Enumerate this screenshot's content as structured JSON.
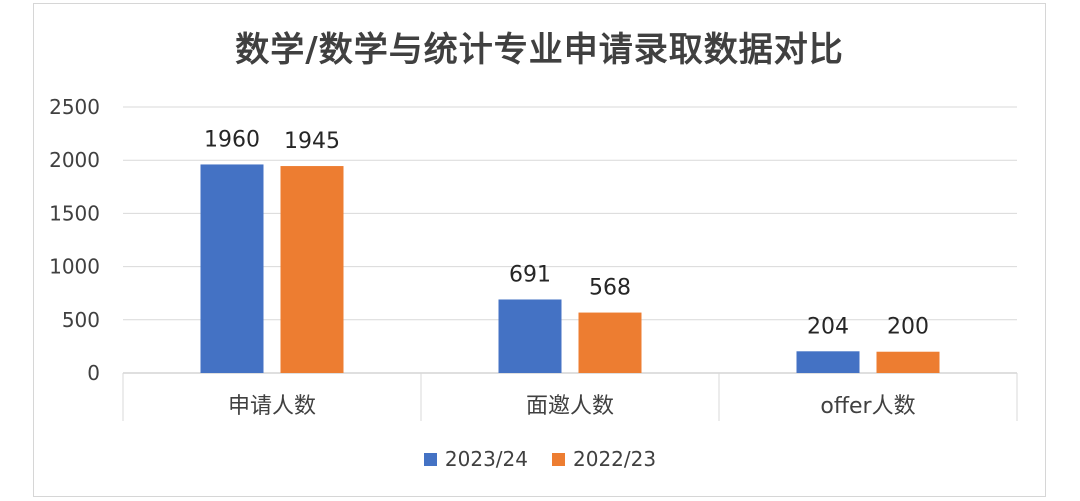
{
  "chart_data": {
    "type": "bar",
    "title": "数学/数学与统计专业申请录取数据对比",
    "categories": [
      "申请人数",
      "面邀人数",
      "offer人数"
    ],
    "series": [
      {
        "name": "2023/24",
        "values": [
          1960,
          691,
          204
        ],
        "color": "#4472C4"
      },
      {
        "name": "2022/23",
        "values": [
          1945,
          568,
          200
        ],
        "color": "#ED7D31"
      }
    ],
    "ylim": [
      0,
      2500
    ],
    "yticks": [
      0,
      500,
      1000,
      1500,
      2000,
      2500
    ],
    "grid": true,
    "legend": "bottom"
  }
}
